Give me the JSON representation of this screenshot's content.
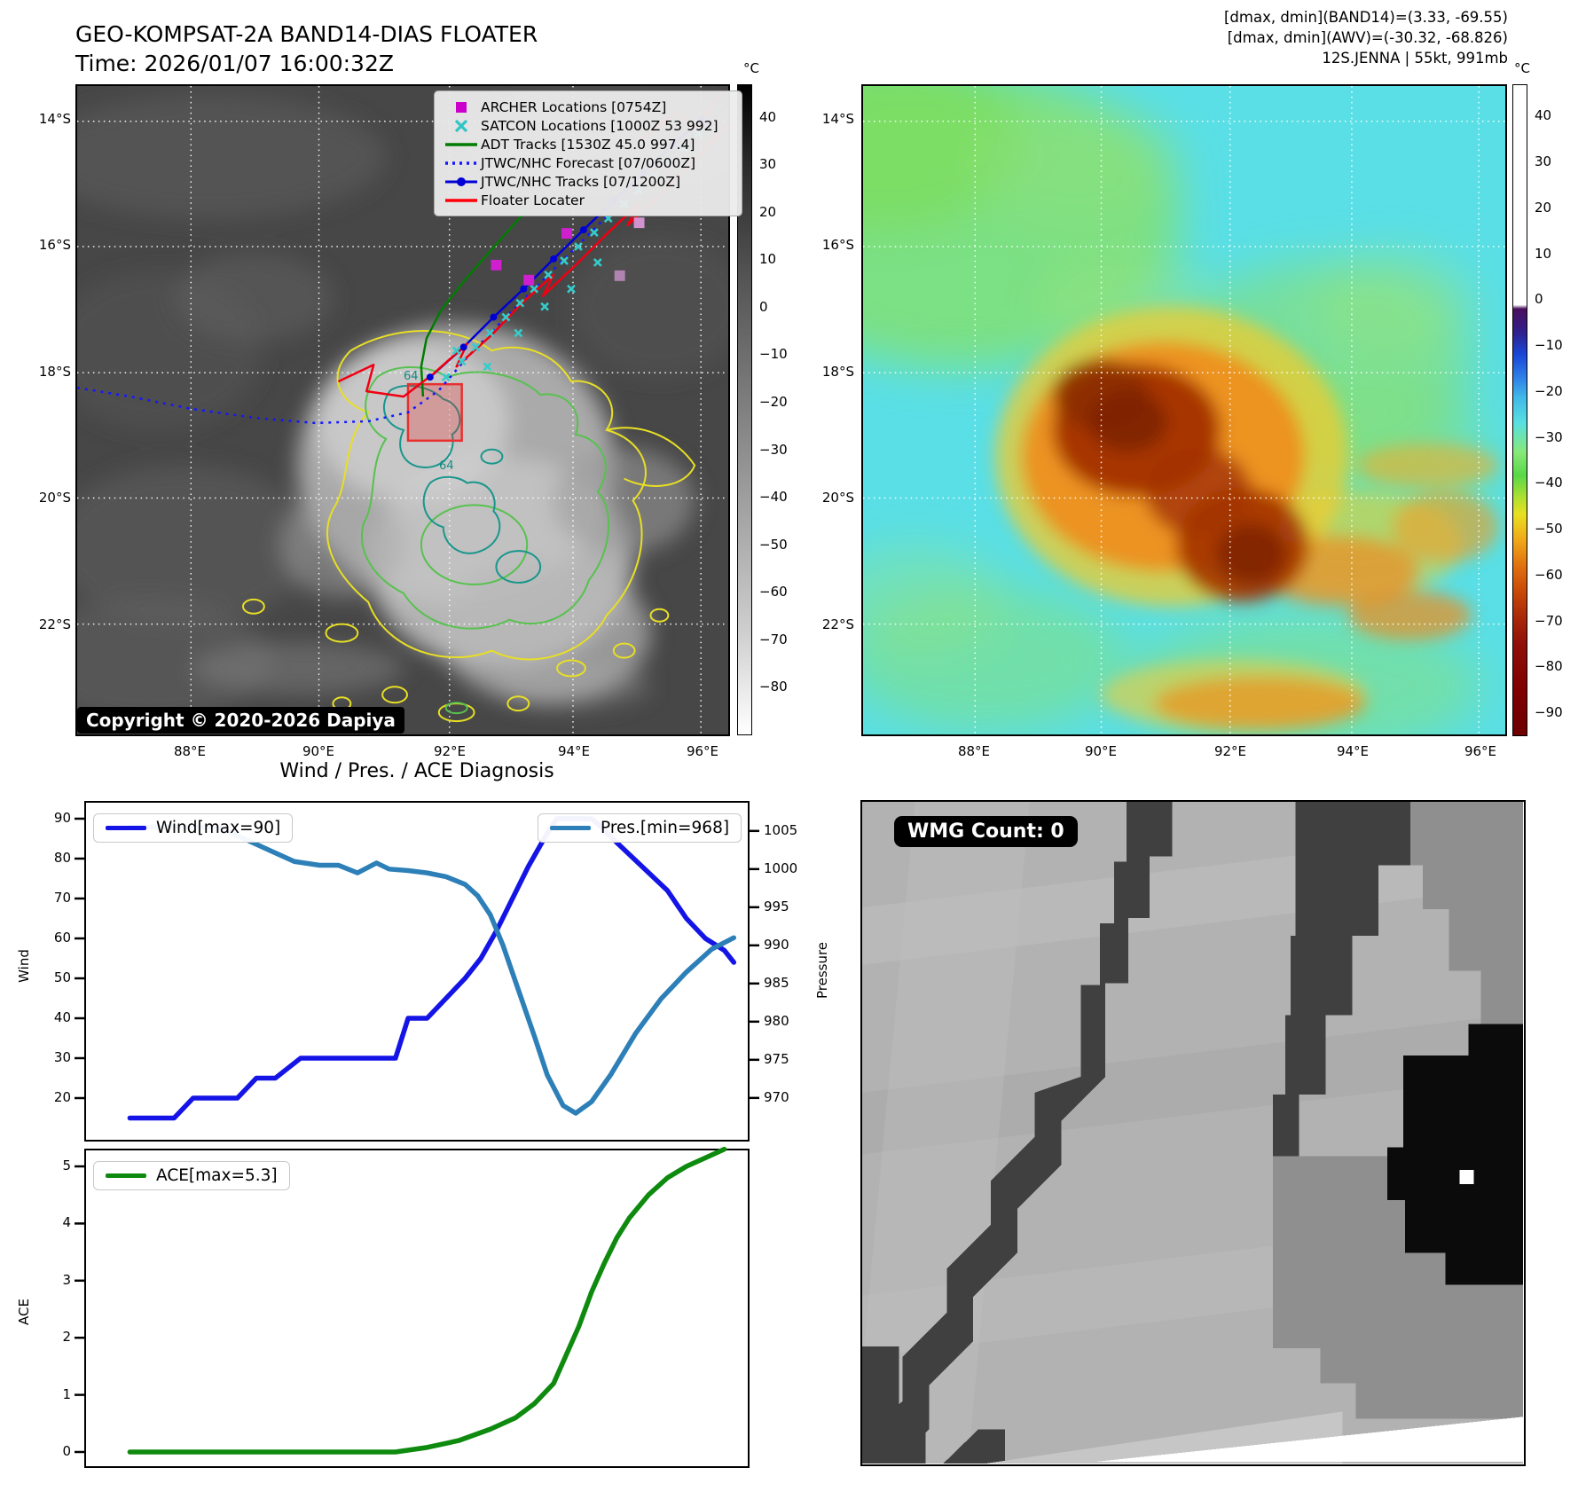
{
  "header": {
    "title": "GEO-KOMPSAT-2A BAND14-DIAS FLOATER",
    "time": "Time: 2026/01/07 16:00:32Z",
    "right_lines": [
      "[dmax, dmin](BAND14)=(3.33, -69.55)",
      "[dmax, dmin](AWV)=(-30.32, -68.826)",
      "12S.JENNA | 55kt, 991mb"
    ]
  },
  "maps": {
    "lat_labels": [
      "14°S",
      "16°S",
      "18°S",
      "20°S",
      "22°S"
    ],
    "lon_labels": [
      "88°E",
      "90°E",
      "92°E",
      "94°E",
      "96°E"
    ],
    "band14": {
      "legend": [
        {
          "label": "ARCHER Locations [0754Z]",
          "marker": "square",
          "color": "#cc00cc"
        },
        {
          "label": "SATCON Locations [1000Z 53 992]",
          "marker": "x",
          "color": "#2fc5c5"
        },
        {
          "label": "ADT Tracks [1530Z 45.0 997.4]",
          "marker": "line",
          "color": "#007d00"
        },
        {
          "label": "JTWC/NHC Forecast [07/0600Z]",
          "marker": "dotted",
          "color": "#1616ff"
        },
        {
          "label": "JTWC/NHC Tracks [07/1200Z]",
          "marker": "line-dot",
          "color": "#0000d6"
        },
        {
          "label": "Floater Locater",
          "marker": "line",
          "color": "#ff0008"
        }
      ],
      "copyright": "Copyright © 2020-2026 Dapiya",
      "colorbar": {
        "unit": "°C",
        "ticks": [
          40,
          30,
          20,
          10,
          0,
          -10,
          -20,
          -30,
          -40,
          -50,
          -60,
          -70,
          -80
        ],
        "vmax": 47,
        "vmin": -90
      },
      "contour_labels": [
        "64",
        "64"
      ]
    },
    "awv": {
      "colorbar": {
        "unit": "°C",
        "ticks": [
          40,
          30,
          20,
          10,
          0,
          -10,
          -20,
          -30,
          -40,
          -50,
          -60,
          -70,
          -80,
          -90
        ],
        "vmax": 47,
        "vmin": -95
      }
    }
  },
  "chart_data": {
    "type": "line",
    "title": "Wind / Pres. / ACE Diagnosis",
    "panels": [
      {
        "name": "wind_pres",
        "ylabel_left": "Wind",
        "ylabel_right": "Pressure",
        "yticks_left": [
          90,
          80,
          70,
          60,
          50,
          40,
          30,
          20
        ],
        "yticks_right": [
          1005,
          1000,
          995,
          990,
          985,
          980,
          975,
          970
        ],
        "ylim_left": [
          9,
          94
        ],
        "ylim_right": [
          964,
          1008.7
        ],
        "series": [
          {
            "name": "Wind",
            "legend": "Wind[max=90]",
            "color": "#1414e6",
            "axis": "left",
            "x": [
              0.03,
              0.1,
              0.13,
              0.16,
              0.2,
              0.23,
              0.26,
              0.3,
              0.33,
              0.45,
              0.47,
              0.5,
              0.53,
              0.56,
              0.585,
              0.61,
              0.635,
              0.66,
              0.685,
              0.705,
              0.73,
              0.76,
              0.775,
              0.8,
              0.84,
              0.88,
              0.91,
              0.94,
              0.97,
              0.985
            ],
            "values": [
              15,
              15,
              20,
              20,
              20,
              25,
              25,
              30,
              30,
              30,
              40,
              40,
              45,
              50,
              55,
              62,
              70,
              78,
              85,
              90,
              90,
              90,
              88,
              84,
              78,
              72,
              65,
              60,
              57,
              54
            ]
          },
          {
            "name": "Pres.",
            "legend": "Pres.[min=968]",
            "color": "#2d7fb8",
            "axis": "right",
            "x": [
              0.03,
              0.17,
              0.21,
              0.25,
              0.29,
              0.33,
              0.36,
              0.39,
              0.42,
              0.44,
              0.47,
              0.5,
              0.53,
              0.56,
              0.58,
              0.6,
              0.62,
              0.645,
              0.67,
              0.69,
              0.715,
              0.735,
              0.76,
              0.79,
              0.83,
              0.87,
              0.91,
              0.95,
              0.985
            ],
            "values": [
              1005.5,
              1005.5,
              1004,
              1002.5,
              1001,
              1000.5,
              1000.5,
              999.5,
              1000.8,
              1000,
              999.8,
              999.5,
              999,
              998,
              996.5,
              994,
              990,
              984,
              978,
              973,
              969,
              968,
              969.5,
              973,
              978.5,
              983,
              986.5,
              989.5,
              991
            ]
          }
        ]
      },
      {
        "name": "ace",
        "ylabel": "ACE",
        "yticks": [
          5,
          4,
          3,
          2,
          1,
          0
        ],
        "ylim": [
          -0.3,
          5.31
        ],
        "series": [
          {
            "name": "ACE",
            "legend": "ACE[max=5.3]",
            "color": "#0e8a0e",
            "x": [
              0.03,
              0.45,
              0.5,
              0.55,
              0.6,
              0.64,
              0.67,
              0.7,
              0.72,
              0.74,
              0.76,
              0.78,
              0.8,
              0.82,
              0.85,
              0.88,
              0.91,
              0.94,
              0.97
            ],
            "values": [
              0,
              0,
              0.08,
              0.2,
              0.4,
              0.6,
              0.85,
              1.2,
              1.7,
              2.2,
              2.8,
              3.3,
              3.75,
              4.1,
              4.5,
              4.8,
              5.0,
              5.15,
              5.3
            ]
          }
        ]
      }
    ]
  },
  "wmg": {
    "label": "WMG Count: 0"
  }
}
